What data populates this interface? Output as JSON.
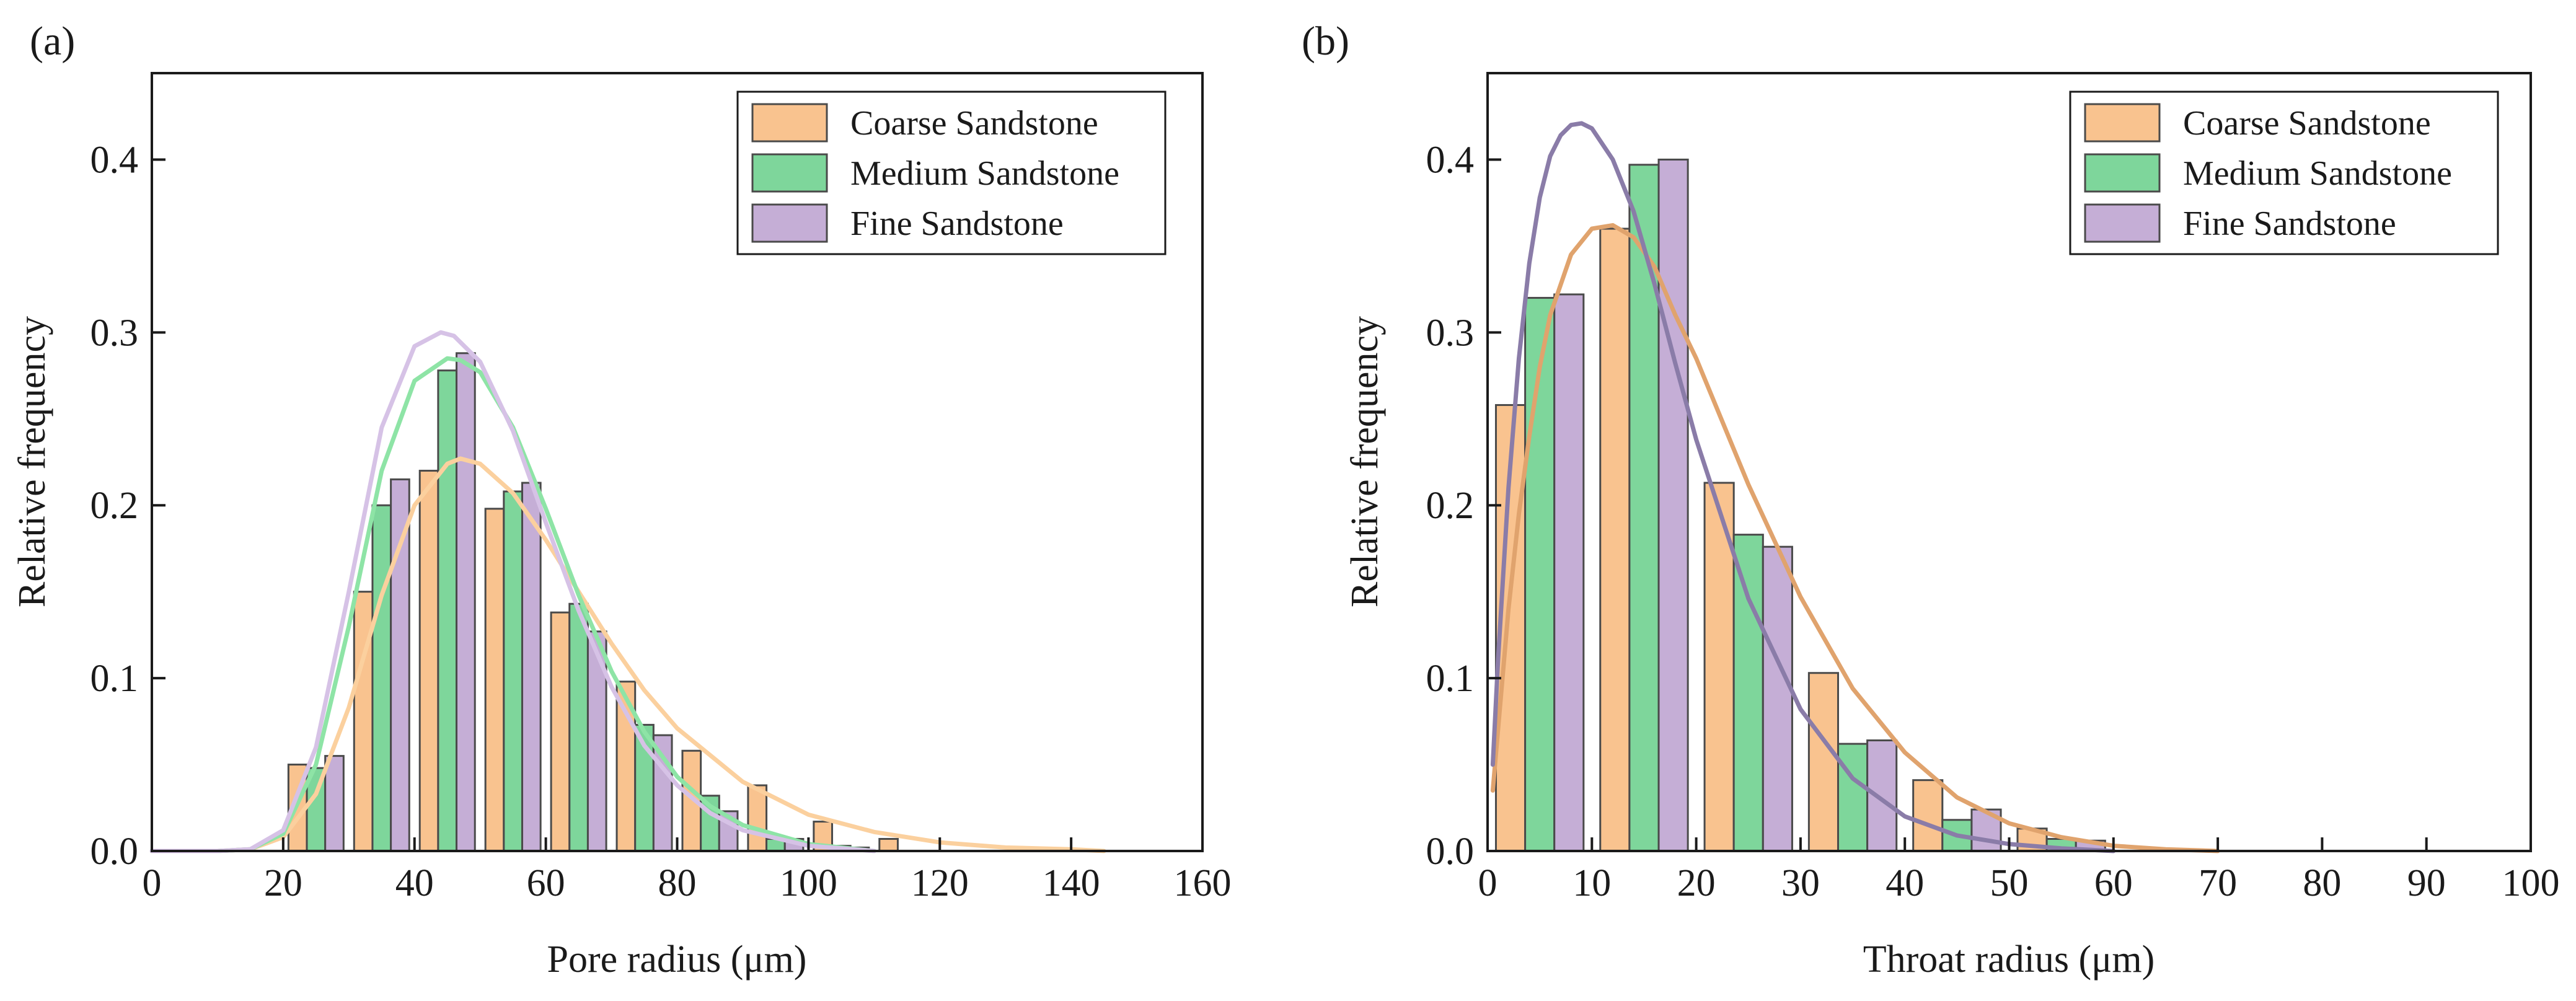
{
  "chart_data": [
    {
      "type": "bar",
      "panel_label": "(a)",
      "xlabel": "Pore radius (μm)",
      "ylabel": "Relative frequency",
      "xlim": [
        0,
        160
      ],
      "ylim": [
        0,
        0.45
      ],
      "xticks": [
        "0",
        "20",
        "40",
        "60",
        "80",
        "100",
        "120",
        "140",
        "160"
      ],
      "yticks": [
        "0.0",
        "0.1",
        "0.2",
        "0.3",
        "0.4"
      ],
      "legend_position": "top-right",
      "bin_width": 10,
      "x": [
        25,
        35,
        45,
        55,
        65,
        75,
        85,
        95,
        105,
        115
      ],
      "series": [
        {
          "name": "Coarse Sandstone",
          "color": "#f9c38f",
          "values": [
            0.05,
            0.15,
            0.22,
            0.198,
            0.138,
            0.098,
            0.058,
            0.038,
            0.017,
            0.007
          ]
        },
        {
          "name": "Medium Sandstone",
          "color": "#7ed69b",
          "values": [
            0.048,
            0.2,
            0.278,
            0.208,
            0.143,
            0.073,
            0.032,
            0.007,
            0.003,
            0.0
          ]
        },
        {
          "name": "Fine Sandstone",
          "color": "#c5aed6",
          "values": [
            0.055,
            0.215,
            0.288,
            0.213,
            0.127,
            0.067,
            0.023,
            0.007,
            0.002,
            0.0
          ]
        }
      ],
      "fit_curves": [
        {
          "name": "Coarse Sandstone fit",
          "color": "#fbd09e",
          "x": [
            0,
            10,
            15,
            20,
            25,
            30,
            35,
            40,
            45,
            47,
            50,
            55,
            60,
            65,
            70,
            75,
            80,
            90,
            100,
            110,
            120,
            130,
            140,
            145
          ],
          "y": [
            0,
            0,
            0.001,
            0.008,
            0.033,
            0.083,
            0.148,
            0.2,
            0.224,
            0.227,
            0.224,
            0.207,
            0.18,
            0.15,
            0.12,
            0.093,
            0.071,
            0.04,
            0.021,
            0.011,
            0.005,
            0.002,
            0.001,
            0.0
          ]
        },
        {
          "name": "Medium Sandstone fit",
          "color": "#8ee4a6",
          "x": [
            0,
            10,
            15,
            20,
            25,
            30,
            35,
            40,
            45,
            47,
            50,
            55,
            60,
            65,
            70,
            75,
            80,
            85,
            90,
            100,
            110
          ],
          "y": [
            0,
            0,
            0.001,
            0.01,
            0.05,
            0.13,
            0.22,
            0.272,
            0.285,
            0.284,
            0.277,
            0.245,
            0.198,
            0.148,
            0.104,
            0.069,
            0.043,
            0.026,
            0.015,
            0.004,
            0.0
          ]
        },
        {
          "name": "Fine Sandstone fit",
          "color": "#d6c2e6",
          "x": [
            0,
            10,
            15,
            20,
            25,
            30,
            35,
            40,
            44,
            46,
            50,
            55,
            60,
            65,
            70,
            75,
            80,
            85,
            90,
            100,
            110
          ],
          "y": [
            0,
            0,
            0.001,
            0.012,
            0.06,
            0.15,
            0.245,
            0.292,
            0.3,
            0.298,
            0.283,
            0.243,
            0.19,
            0.139,
            0.095,
            0.061,
            0.038,
            0.022,
            0.012,
            0.003,
            0.0
          ]
        }
      ]
    },
    {
      "type": "bar",
      "panel_label": "(b)",
      "xlabel": "Throat radius (μm)",
      "ylabel": "Relative frequency",
      "xlim": [
        0,
        100
      ],
      "ylim": [
        0,
        0.45
      ],
      "xticks": [
        "0",
        "10",
        "20",
        "30",
        "40",
        "50",
        "60",
        "70",
        "80",
        "90",
        "100"
      ],
      "yticks": [
        "0.0",
        "0.1",
        "0.2",
        "0.3",
        "0.4"
      ],
      "legend_position": "top-right",
      "bin_width": 10,
      "x": [
        5,
        15,
        25,
        35,
        45,
        55
      ],
      "series": [
        {
          "name": "Coarse Sandstone",
          "color": "#f9c38f",
          "values": [
            0.258,
            0.36,
            0.213,
            0.103,
            0.041,
            0.013
          ]
        },
        {
          "name": "Medium Sandstone",
          "color": "#7ed69b",
          "values": [
            0.32,
            0.397,
            0.183,
            0.062,
            0.018,
            0.007
          ]
        },
        {
          "name": "Fine Sandstone",
          "color": "#c5aed6",
          "values": [
            0.322,
            0.4,
            0.176,
            0.064,
            0.024,
            0.006
          ]
        }
      ],
      "fit_curves": [
        {
          "name": "Coarse Sandstone fit",
          "color": "#e0a36d",
          "x": [
            0.5,
            1,
            2,
            3,
            4,
            5,
            6,
            8,
            10,
            12,
            14,
            16,
            18,
            20,
            25,
            30,
            35,
            40,
            45,
            50,
            55,
            60,
            65,
            70
          ],
          "y": [
            0.035,
            0.07,
            0.14,
            0.195,
            0.24,
            0.28,
            0.31,
            0.345,
            0.36,
            0.362,
            0.355,
            0.338,
            0.31,
            0.285,
            0.212,
            0.147,
            0.094,
            0.057,
            0.031,
            0.016,
            0.008,
            0.003,
            0.001,
            0.0
          ]
        },
        {
          "name": "Fine Sandstone fit",
          "color": "#8a7ca8",
          "x": [
            0.5,
            1,
            2,
            3,
            4,
            5,
            6,
            7,
            8,
            9,
            10,
            12,
            14,
            16,
            18,
            20,
            25,
            30,
            35,
            40,
            45,
            50,
            55,
            60
          ],
          "y": [
            0.05,
            0.11,
            0.21,
            0.285,
            0.34,
            0.378,
            0.402,
            0.414,
            0.42,
            0.421,
            0.418,
            0.4,
            0.37,
            0.328,
            0.282,
            0.238,
            0.146,
            0.082,
            0.042,
            0.02,
            0.009,
            0.004,
            0.0015,
            0.0
          ]
        }
      ]
    }
  ]
}
